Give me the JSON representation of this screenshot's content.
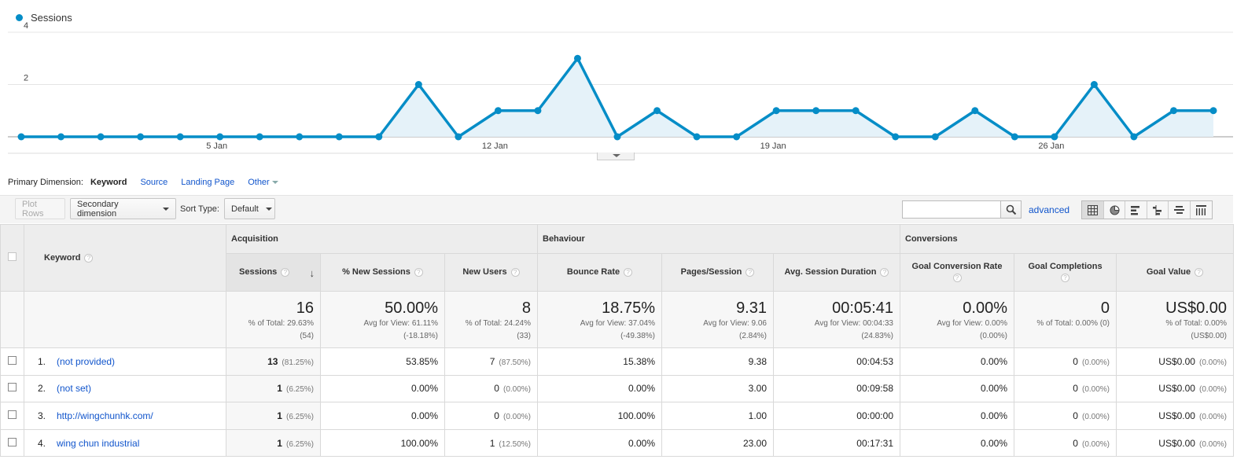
{
  "chart_data": {
    "type": "line",
    "series": [
      {
        "name": "Sessions",
        "color": "#058dc7",
        "values": [
          0,
          0,
          0,
          0,
          0,
          0,
          0,
          0,
          0,
          0,
          2,
          0,
          1,
          1,
          3,
          0,
          1,
          0,
          0,
          1,
          1,
          1,
          0,
          0,
          1,
          0,
          0,
          2,
          0,
          1,
          1
        ]
      }
    ],
    "x": [
      "1 Jan",
      "2 Jan",
      "3 Jan",
      "4 Jan",
      "5 Jan",
      "6 Jan",
      "7 Jan",
      "8 Jan",
      "9 Jan",
      "10 Jan",
      "11 Jan",
      "12 Jan",
      "13 Jan",
      "14 Jan",
      "15 Jan",
      "16 Jan",
      "17 Jan",
      "18 Jan",
      "19 Jan",
      "20 Jan",
      "21 Jan",
      "22 Jan",
      "23 Jan",
      "24 Jan",
      "25 Jan",
      "26 Jan",
      "27 Jan",
      "28 Jan",
      "29 Jan",
      "30 Jan",
      "31 Jan"
    ],
    "x_tick_labels": [
      {
        "index": 5,
        "label": "5 Jan"
      },
      {
        "index": 12,
        "label": "12 Jan"
      },
      {
        "index": 19,
        "label": "19 Jan"
      },
      {
        "index": 26,
        "label": "26 Jan"
      }
    ],
    "y_ticks": [
      2,
      4
    ],
    "ylim": [
      0,
      4
    ],
    "grid": true,
    "legend": "top-left",
    "fill": "#e5f2f9"
  },
  "legend": {
    "label": "Sessions"
  },
  "primary_dimension": {
    "label": "Primary Dimension:",
    "active": "Keyword",
    "links": [
      "Source",
      "Landing Page"
    ],
    "other": "Other"
  },
  "toolbar": {
    "plot_rows": "Plot Rows",
    "secondary_dimension": "Secondary dimension",
    "sort_type_label": "Sort Type:",
    "sort_type_value": "Default",
    "search_value": "",
    "advanced": "advanced"
  },
  "table": {
    "groups": {
      "acquisition": "Acquisition",
      "behaviour": "Behaviour",
      "conversions": "Conversions"
    },
    "headers": {
      "keyword": "Keyword",
      "sessions": "Sessions",
      "new_sessions": "% New Sessions",
      "new_users": "New Users",
      "bounce_rate": "Bounce Rate",
      "pages_session": "Pages/Session",
      "avg_duration": "Avg. Session Duration",
      "goal_conv_rate": "Goal Conversion Rate",
      "goal_completions": "Goal Completions",
      "goal_value": "Goal Value"
    },
    "totals": {
      "sessions": {
        "value": "16",
        "l1": "% of Total: 29.63%",
        "l2": "(54)"
      },
      "new_sessions": {
        "value": "50.00%",
        "l1": "Avg for View: 61.11%",
        "l2": "(-18.18%)"
      },
      "new_users": {
        "value": "8",
        "l1": "% of Total: 24.24%",
        "l2": "(33)"
      },
      "bounce_rate": {
        "value": "18.75%",
        "l1": "Avg for View: 37.04%",
        "l2": "(-49.38%)"
      },
      "pages_session": {
        "value": "9.31",
        "l1": "Avg for View: 9.06",
        "l2": "(2.84%)"
      },
      "avg_duration": {
        "value": "00:05:41",
        "l1": "Avg for View: 00:04:33",
        "l2": "(24.83%)"
      },
      "goal_conv_rate": {
        "value": "0.00%",
        "l1": "Avg for View: 0.00%",
        "l2": "(0.00%)"
      },
      "goal_completions": {
        "value": "0",
        "l1": "% of Total: 0.00% (0)",
        "l2": ""
      },
      "goal_value": {
        "value": "US$0.00",
        "l1": "% of Total: 0.00%",
        "l2": "(US$0.00)"
      }
    },
    "rows": [
      {
        "idx": "1.",
        "keyword": "(not provided)",
        "sessions": "13",
        "sessions_pct": "(81.25%)",
        "new_sessions": "53.85%",
        "new_users": "7",
        "new_users_pct": "(87.50%)",
        "bounce_rate": "15.38%",
        "pages_session": "9.38",
        "avg_duration": "00:04:53",
        "goal_conv_rate": "0.00%",
        "goal_completions": "0",
        "goal_completions_pct": "(0.00%)",
        "goal_value": "US$0.00",
        "goal_value_pct": "(0.00%)"
      },
      {
        "idx": "2.",
        "keyword": "(not set)",
        "sessions": "1",
        "sessions_pct": "(6.25%)",
        "new_sessions": "0.00%",
        "new_users": "0",
        "new_users_pct": "(0.00%)",
        "bounce_rate": "0.00%",
        "pages_session": "3.00",
        "avg_duration": "00:09:58",
        "goal_conv_rate": "0.00%",
        "goal_completions": "0",
        "goal_completions_pct": "(0.00%)",
        "goal_value": "US$0.00",
        "goal_value_pct": "(0.00%)"
      },
      {
        "idx": "3.",
        "keyword": "http://wingchunhk.com/",
        "sessions": "1",
        "sessions_pct": "(6.25%)",
        "new_sessions": "0.00%",
        "new_users": "0",
        "new_users_pct": "(0.00%)",
        "bounce_rate": "100.00%",
        "pages_session": "1.00",
        "avg_duration": "00:00:00",
        "goal_conv_rate": "0.00%",
        "goal_completions": "0",
        "goal_completions_pct": "(0.00%)",
        "goal_value": "US$0.00",
        "goal_value_pct": "(0.00%)"
      },
      {
        "idx": "4.",
        "keyword": "wing chun industrial",
        "sessions": "1",
        "sessions_pct": "(6.25%)",
        "new_sessions": "100.00%",
        "new_users": "1",
        "new_users_pct": "(12.50%)",
        "bounce_rate": "0.00%",
        "pages_session": "23.00",
        "avg_duration": "00:17:31",
        "goal_conv_rate": "0.00%",
        "goal_completions": "0",
        "goal_completions_pct": "(0.00%)",
        "goal_value": "US$0.00",
        "goal_value_pct": "(0.00%)"
      }
    ]
  }
}
